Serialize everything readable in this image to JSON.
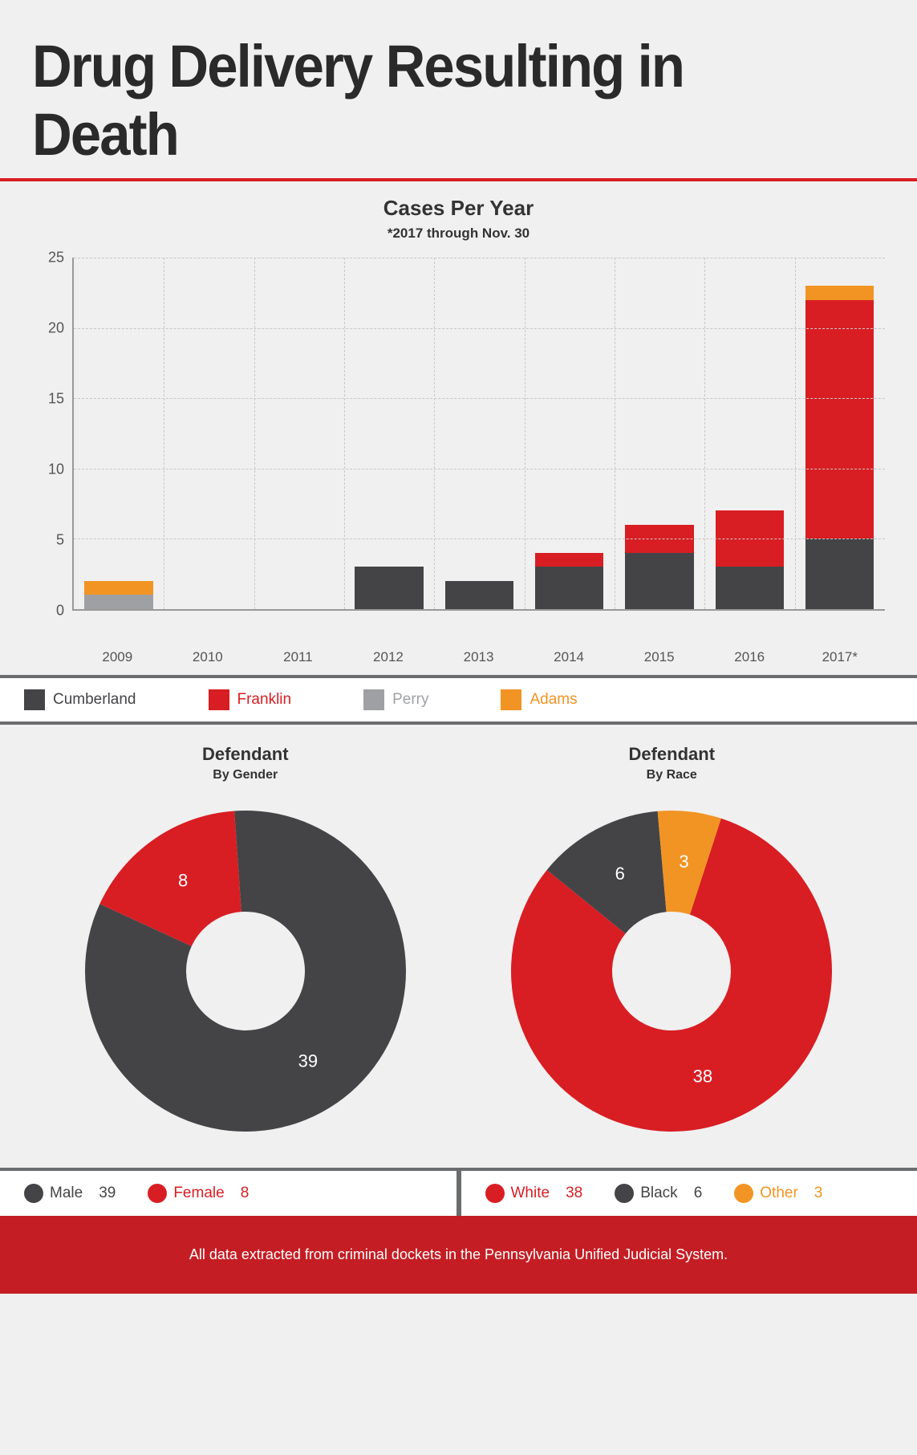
{
  "title": "Drug Delivery Resulting in Death",
  "bar_chart": {
    "type": "stacked-bar",
    "title": "Cases Per Year",
    "subtitle": "*2017 through Nov. 30",
    "ylim": [
      0,
      25
    ],
    "ytick_step": 5,
    "yticks": [
      0,
      5,
      10,
      15,
      20,
      25
    ],
    "categories": [
      "2009",
      "2010",
      "2011",
      "2012",
      "2013",
      "2014",
      "2015",
      "2016",
      "2017*"
    ],
    "series": [
      {
        "name": "Cumberland",
        "color": "#444447",
        "data": [
          0,
          0,
          0,
          3,
          2,
          3,
          4,
          3,
          5
        ]
      },
      {
        "name": "Franklin",
        "color": "#d81e23",
        "data": [
          0,
          0,
          0,
          0,
          0,
          1,
          2,
          4,
          17
        ]
      },
      {
        "name": "Perry",
        "color": "#9fa0a3",
        "data": [
          1,
          0,
          0,
          0,
          0,
          0,
          0,
          0,
          0
        ]
      },
      {
        "name": "Adams",
        "color": "#f29423",
        "data": [
          1,
          0,
          0,
          0,
          0,
          0,
          0,
          0,
          1
        ]
      }
    ],
    "grid_color": "#c8c8c8",
    "axis_color": "#999999",
    "background_color": "#f0f0f0",
    "label_fontsize": 17
  },
  "donut_gender": {
    "type": "donut",
    "title": "Defendant",
    "subtitle": "By Gender",
    "inner_radius_ratio": 0.37,
    "start_angle": -4,
    "slices": [
      {
        "label": "Male",
        "value": 39,
        "color": "#444447"
      },
      {
        "label": "Female",
        "value": 8,
        "color": "#d81e23"
      }
    ]
  },
  "donut_race": {
    "type": "donut",
    "title": "Defendant",
    "subtitle": "By Race",
    "inner_radius_ratio": 0.37,
    "start_angle": 18,
    "slices": [
      {
        "label": "White",
        "value": 38,
        "color": "#d81e23"
      },
      {
        "label": "Black",
        "value": 6,
        "color": "#444447"
      },
      {
        "label": "Other",
        "value": 3,
        "color": "#f29423"
      }
    ]
  },
  "footer_text": "All data extracted from criminal dockets in the Pennsylvania Unified Judicial System.",
  "colors": {
    "divider_red": "#d81e23",
    "divider_gray": "#6b6c6e",
    "footer_bg": "#c41e24"
  }
}
